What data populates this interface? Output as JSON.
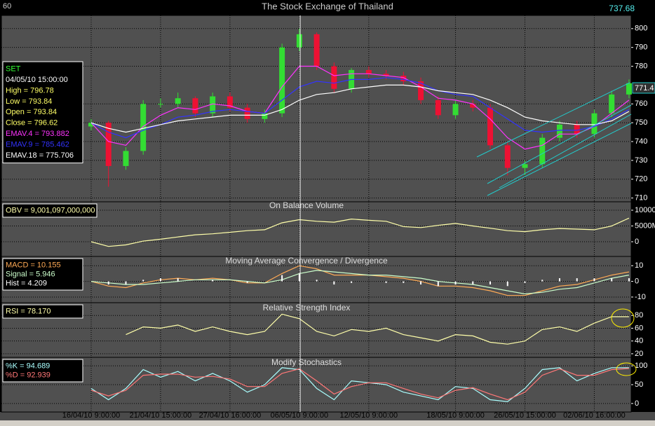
{
  "chart_data": [
    {
      "type": "candlestick",
      "title": "The Stock Exchange of Thailand",
      "period_label": "60",
      "top_right_label": "737.68",
      "last_price_label": "771.4",
      "categories": [
        "16/04/10 9:00:00",
        null,
        null,
        null,
        "21/04/10 15:00:00",
        null,
        null,
        null,
        "27/04/10 16:00:00",
        null,
        null,
        null,
        "06/05/10 9:00:00",
        null,
        null,
        null,
        "12/05/10 9:00:00",
        null,
        null,
        null,
        null,
        "18/05/10 9:00:00",
        null,
        null,
        null,
        "26/05/10 15:00:00",
        null,
        null,
        null,
        "02/06/10 16:00:00",
        null,
        null
      ],
      "open": [
        748,
        750,
        727,
        735,
        760,
        760,
        763,
        755,
        764,
        758,
        752,
        755,
        790,
        797,
        780,
        768,
        778,
        776,
        775,
        772,
        762,
        754,
        760,
        758,
        738,
        726,
        728,
        742,
        749,
        744,
        755,
        765
      ],
      "high": [
        752,
        751,
        737,
        762,
        763,
        766,
        764,
        766,
        766,
        760,
        757,
        792,
        800,
        798,
        782,
        779,
        780,
        778,
        777,
        774,
        764,
        762,
        762,
        760,
        740,
        730,
        744,
        751,
        751,
        757,
        767,
        773
      ],
      "low": [
        746,
        716,
        725,
        733,
        758,
        758,
        753,
        753,
        756,
        750,
        750,
        753,
        788,
        778,
        766,
        766,
        774,
        773,
        770,
        760,
        752,
        752,
        756,
        736,
        722,
        722,
        726,
        740,
        742,
        742,
        753,
        763
      ],
      "close": [
        750,
        727,
        735,
        760,
        760,
        763,
        755,
        764,
        758,
        752,
        755,
        790,
        797,
        780,
        768,
        778,
        776,
        775,
        772,
        762,
        754,
        760,
        758,
        738,
        726,
        728,
        742,
        749,
        744,
        755,
        765,
        771
      ],
      "up_color": "#33dd33",
      "down_color": "#ee1133",
      "info": [
        "SET",
        "04/05/10 15:00:00",
        "High  = 796.78",
        "Low  = 793.84",
        "Open = 793.84",
        "Close = 796.62"
      ],
      "series": [
        {
          "name": "EMAV.4 = 793.882",
          "color": "#ff33ff",
          "values": [
            750,
            740,
            738,
            748,
            754,
            758,
            757,
            760,
            759,
            756,
            755,
            769,
            780,
            780,
            775,
            776,
            776,
            775,
            774,
            769,
            763,
            762,
            760,
            752,
            742,
            736,
            738,
            744,
            744,
            748,
            755,
            762
          ]
        },
        {
          "name": "EMAV.9 = 785.462",
          "color": "#3333ff",
          "values": [
            750,
            745,
            742,
            746,
            749,
            753,
            754,
            756,
            757,
            756,
            755,
            762,
            769,
            772,
            771,
            773,
            773,
            774,
            773,
            771,
            767,
            765,
            764,
            758,
            752,
            746,
            745,
            746,
            746,
            748,
            752,
            757
          ]
        },
        {
          "name": "EMAV.18 = 775.706",
          "color": "#ffffff",
          "values": [
            750,
            747,
            745,
            747,
            749,
            751,
            752,
            753,
            754,
            754,
            754,
            757,
            762,
            765,
            766,
            768,
            769,
            770,
            770,
            769,
            767,
            766,
            765,
            762,
            758,
            753,
            751,
            750,
            749,
            749,
            751,
            756
          ]
        }
      ],
      "ylim": [
        708,
        807
      ],
      "yticks": [
        800,
        790,
        780,
        760,
        750,
        740,
        730,
        720,
        710
      ],
      "grid": true
    },
    {
      "type": "line",
      "title": "On Balance Volume",
      "series": [
        {
          "name": "OBV = 9,001,097,000,000",
          "color": "#ffffaa",
          "values": [
            0,
            -1500,
            -1000,
            200,
            800,
            1500,
            2200,
            2500,
            3000,
            3500,
            3800,
            6000,
            7000,
            6500,
            6200,
            7200,
            6800,
            6500,
            4800,
            4500,
            5200,
            5800,
            5000,
            4300,
            3500,
            3200,
            3800,
            4200,
            4000,
            3800,
            5000,
            7500
          ]
        }
      ],
      "ylim": [
        -4667,
        12667
      ],
      "yticks": [
        10000,
        {
          "value": 5000,
          "label": "5000M"
        },
        0
      ],
      "grid": true
    },
    {
      "type": "line",
      "title": "Moving Average Convergence / Divergence",
      "series": [
        {
          "name": "MACD = 10.155",
          "color": "#ffaa55",
          "values": [
            0,
            -3,
            -4,
            -1,
            1,
            2,
            1,
            2,
            1,
            -1,
            -1,
            5,
            10,
            8,
            4,
            4,
            4,
            3,
            2,
            0,
            -3,
            -3,
            -4,
            -6,
            -9,
            -9,
            -6,
            -3,
            -2,
            1,
            4,
            6
          ]
        },
        {
          "name": "Signal = 5.946",
          "color": "#ccffcc",
          "values": [
            0,
            -1,
            -2,
            -2,
            -1,
            0,
            1,
            1,
            1,
            0,
            -1,
            1,
            5,
            7,
            6,
            5,
            4,
            4,
            3,
            2,
            0,
            -1,
            -2,
            -4,
            -6,
            -8,
            -7,
            -5,
            -4,
            -1,
            2,
            4
          ]
        },
        {
          "name": "Hist = 4.209",
          "color": "#ffffff",
          "mark": "bar",
          "values": [
            0,
            -2,
            -2,
            1,
            2,
            2,
            0,
            1,
            0,
            -1,
            0,
            4,
            5,
            1,
            -2,
            -1,
            0,
            -1,
            -1,
            -2,
            -3,
            -2,
            -2,
            -2,
            -3,
            -1,
            1,
            2,
            2,
            2,
            2,
            2
          ]
        }
      ],
      "ylim": [
        -13.6,
        15.9
      ],
      "yticks": [
        10,
        0,
        -10
      ],
      "grid": true
    },
    {
      "type": "line",
      "title": "Relative Strength Index",
      "series": [
        {
          "name": "RSI = 78.170",
          "color": "#ffffaa",
          "values": [
            null,
            null,
            50,
            62,
            60,
            65,
            55,
            62,
            55,
            50,
            55,
            82,
            75,
            55,
            48,
            58,
            55,
            60,
            50,
            45,
            40,
            50,
            48,
            38,
            35,
            40,
            58,
            62,
            55,
            68,
            78,
            78
          ]
        }
      ],
      "ylim": [
        14.4,
        100
      ],
      "yticks": [
        80,
        60,
        40,
        20
      ],
      "grid": true
    },
    {
      "type": "line",
      "title": "Modify Stochastics",
      "series": [
        {
          "name": "%K = 94.689",
          "color": "#aaffff",
          "values": [
            40,
            10,
            40,
            90,
            70,
            85,
            60,
            80,
            60,
            30,
            50,
            95,
            90,
            40,
            10,
            60,
            55,
            50,
            30,
            20,
            10,
            45,
            40,
            10,
            5,
            40,
            90,
            95,
            60,
            80,
            95,
            95
          ]
        },
        {
          "name": "%D = 92.939",
          "color": "#ff7777",
          "values": [
            35,
            20,
            35,
            75,
            78,
            78,
            70,
            72,
            65,
            45,
            45,
            80,
            92,
            60,
            25,
            45,
            55,
            55,
            40,
            25,
            15,
            35,
            42,
            25,
            10,
            30,
            75,
            92,
            75,
            75,
            90,
            93
          ]
        }
      ],
      "ylim": [
        -22.6,
        122.6
      ],
      "yticks": [
        100,
        50,
        0
      ],
      "grid": true
    }
  ]
}
